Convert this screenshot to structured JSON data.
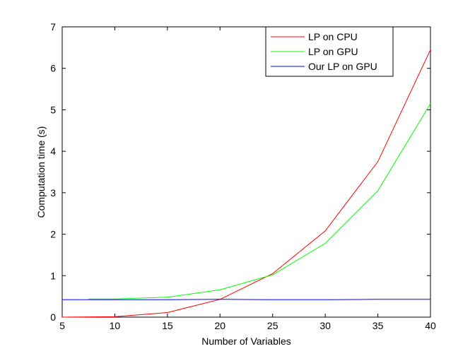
{
  "chart_data": {
    "type": "line",
    "title": "",
    "xlabel": "Number of Variables",
    "ylabel": "Computation time (s)",
    "xlim": [
      5,
      40
    ],
    "ylim": [
      0,
      7
    ],
    "xticks": [
      "5",
      "10",
      "15",
      "20",
      "25",
      "30",
      "35",
      "40"
    ],
    "yticks": [
      "0",
      "1",
      "2",
      "3",
      "4",
      "5",
      "6",
      "7"
    ],
    "grid": false,
    "legend_position": "top-right",
    "series": [
      {
        "name": "LP on CPU",
        "color": "#ff0000",
        "x": [
          5,
          10,
          15,
          20,
          25,
          30,
          35,
          40
        ],
        "y": [
          0.0,
          0.01,
          0.11,
          0.43,
          1.05,
          2.08,
          3.75,
          6.45
        ]
      },
      {
        "name": "LP on GPU",
        "color": "#00ff00",
        "x": [
          7.5,
          10,
          15,
          20,
          25,
          30,
          35,
          40
        ],
        "y": [
          0.44,
          0.44,
          0.48,
          0.66,
          1.02,
          1.78,
          3.05,
          5.15
        ]
      },
      {
        "name": "Our LP on GPU",
        "color": "#0000ff",
        "x": [
          5,
          10,
          15,
          20,
          25,
          30,
          35,
          40
        ],
        "y": [
          0.42,
          0.42,
          0.42,
          0.43,
          0.42,
          0.42,
          0.43,
          0.43
        ]
      }
    ]
  }
}
